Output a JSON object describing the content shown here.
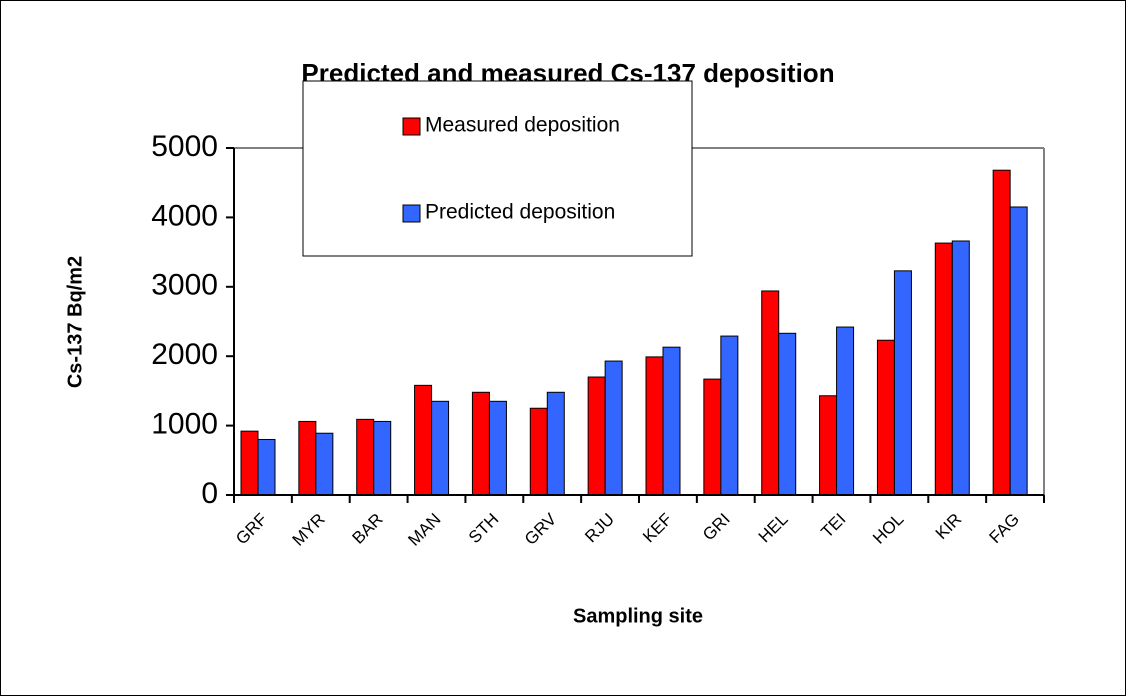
{
  "chart_data": {
    "type": "bar",
    "title": "Predicted and measured Cs-137 deposition",
    "x_label": "Sampling site",
    "y_label": "Cs-137 Bq/m2",
    "categories": [
      "GRF",
      "MYR",
      "BAR",
      "MAN",
      "STH",
      "GRV",
      "RJU",
      "KEF",
      "GRI",
      "HEL",
      "TEI",
      "HOL",
      "KIR",
      "FAG"
    ],
    "series": [
      {
        "name": "Measured deposition",
        "color": "#ff0000",
        "values": [
          920,
          1060,
          1090,
          1580,
          1480,
          1250,
          1700,
          1990,
          1670,
          2940,
          1430,
          2230,
          3630,
          4680
        ]
      },
      {
        "name": "Predicted deposition",
        "color": "#3366ff",
        "values": [
          800,
          890,
          1060,
          1350,
          1350,
          1480,
          1930,
          2130,
          2290,
          2330,
          2420,
          3230,
          3660,
          4150
        ]
      }
    ],
    "ylim": [
      0,
      5000
    ],
    "yticks": [
      0,
      1000,
      2000,
      3000,
      4000,
      5000
    ],
    "grid": false,
    "legend_position": "top"
  }
}
